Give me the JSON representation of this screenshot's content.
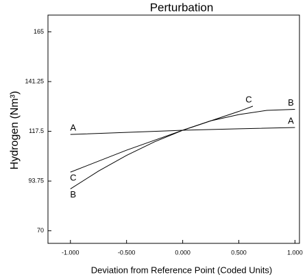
{
  "chart_data": {
    "type": "line",
    "title": "Perturbation",
    "x_label": "Deviation from Reference Point (Coded Units)",
    "y_label": "Hydrogen (Nm³)",
    "xlim": [
      -1.2,
      1.04
    ],
    "ylim": [
      64,
      173
    ],
    "xticks": [
      {
        "value": -1,
        "label": "-1.000"
      },
      {
        "value": -0.5,
        "label": "-0.500"
      },
      {
        "value": 0,
        "label": "0.000"
      },
      {
        "value": 0.5,
        "label": "0.500"
      },
      {
        "value": 1,
        "label": "1.000"
      }
    ],
    "yticks": [
      70,
      93.75,
      117.5,
      141.25,
      165
    ],
    "grid": false,
    "series": [
      {
        "name": "A",
        "color": "#000000",
        "x": [
          -1,
          -0.5,
          0,
          0.5,
          1
        ],
        "values": [
          116,
          117,
          118,
          118.7,
          119.3
        ]
      },
      {
        "name": "B",
        "color": "#000000",
        "x": [
          -1,
          -0.75,
          -0.5,
          -0.25,
          0,
          0.25,
          0.5,
          0.75,
          1
        ],
        "values": [
          90,
          98.5,
          106,
          112.5,
          118,
          122.5,
          125.5,
          127.5,
          128
        ]
      },
      {
        "name": "C",
        "color": "#000000",
        "x": [
          -1,
          -0.5,
          0,
          0.5,
          0.625
        ],
        "values": [
          98,
          108.5,
          118,
          127,
          129.5
        ]
      }
    ]
  }
}
